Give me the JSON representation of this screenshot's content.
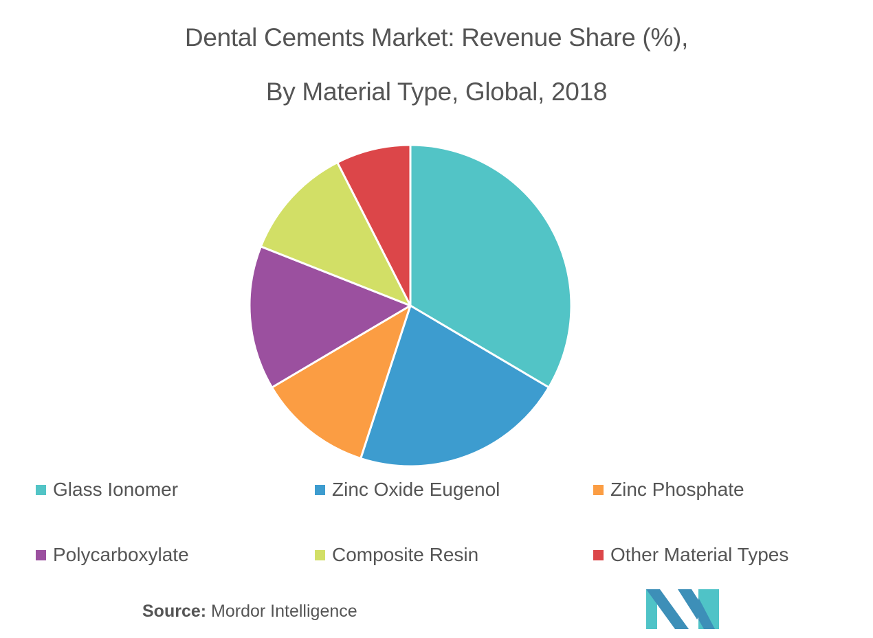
{
  "chart_data": {
    "type": "pie",
    "title": "Dental Cements Market: Revenue Share (%),",
    "subtitle": "By Material Type, Global, 2018",
    "categories": [
      "Glass Ionomer",
      "Zinc Oxide Eugenol",
      "Zinc Phosphate",
      "Polycarboxylate",
      "Composite Resin",
      "Other Material Types"
    ],
    "values": [
      33.5,
      21.5,
      11.5,
      14.5,
      11.5,
      7.5
    ],
    "colors": [
      "#52c4c6",
      "#3d9ccf",
      "#fb9d43",
      "#9b509f",
      "#d2df66",
      "#dc4649"
    ],
    "legend_position": "bottom"
  },
  "source": {
    "label": "Source:",
    "text": "Mordor Intelligence"
  },
  "logo": {
    "icon": "mordor-intelligence-logo",
    "colors": [
      "#3d8fb8",
      "#4fc3c7"
    ]
  }
}
